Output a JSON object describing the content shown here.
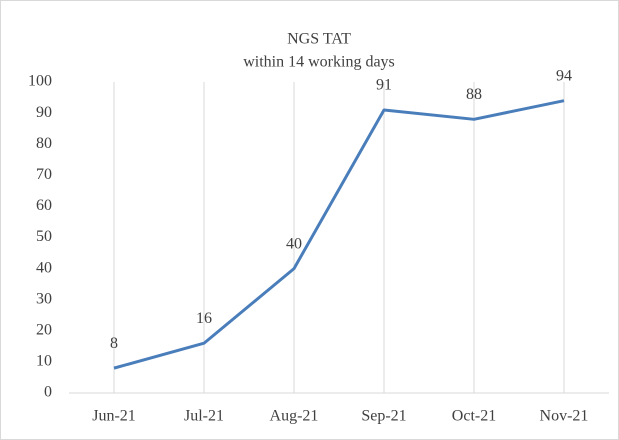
{
  "chart_data": {
    "type": "line",
    "title": "NGS TAT",
    "subtitle": "within 14 working days",
    "categories": [
      "Jun-21",
      "Jul-21",
      "Aug-21",
      "Sep-21",
      "Oct-21",
      "Nov-21"
    ],
    "values": [
      8,
      16,
      40,
      91,
      88,
      94
    ],
    "color": "#4a7ebb",
    "ylim": [
      0,
      100
    ],
    "yticks": [
      0,
      10,
      20,
      30,
      40,
      50,
      60,
      70,
      80,
      90,
      100
    ],
    "grid": true
  }
}
